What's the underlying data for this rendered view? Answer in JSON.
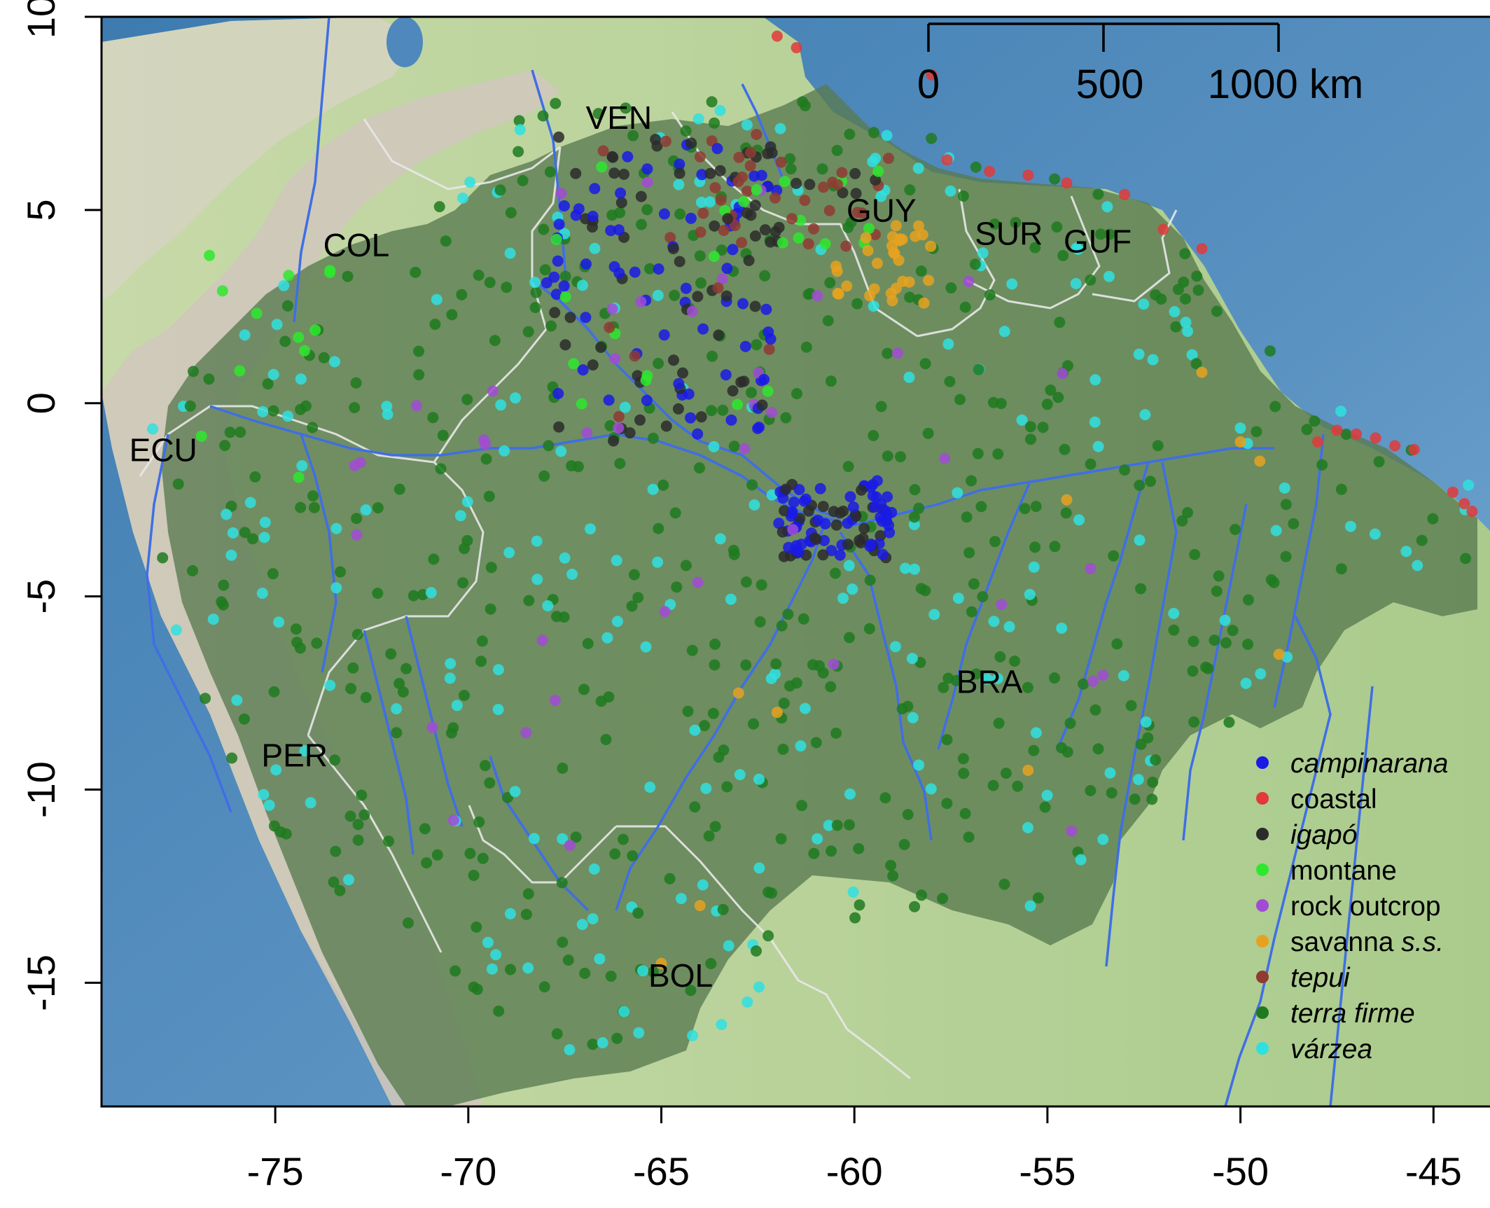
{
  "colors": {
    "ocean_deep": "#3f7fb4",
    "ocean_shallow": "#9dc3de",
    "land_low": "#b6d29a",
    "andes": "#c9c2b5",
    "amazon_region": "#5a7a54",
    "river": "#3b6fe0",
    "border": "#e6e6e6",
    "frame": "#000000"
  },
  "x_axis": {
    "ticks": [
      {
        "value": -75,
        "label": "-75"
      },
      {
        "value": -70,
        "label": "-70"
      },
      {
        "value": -65,
        "label": "-65"
      },
      {
        "value": -60,
        "label": "-60"
      },
      {
        "value": -55,
        "label": "-55"
      },
      {
        "value": -50,
        "label": "-50"
      },
      {
        "value": -45,
        "label": "-45"
      }
    ]
  },
  "y_axis": {
    "ticks": [
      {
        "value": 10,
        "label": "10"
      },
      {
        "value": 5,
        "label": "5"
      },
      {
        "value": 0,
        "label": "0"
      },
      {
        "value": -5,
        "label": "-5"
      },
      {
        "value": -10,
        "label": "-10"
      },
      {
        "value": -15,
        "label": "-15"
      }
    ]
  },
  "extent": {
    "lon": [
      -79.5,
      -43.5
    ],
    "lat": [
      -18.2,
      10.0
    ]
  },
  "countries": [
    {
      "code": "VEN",
      "lon": -66.1,
      "lat": 7.1
    },
    {
      "code": "COL",
      "lon": -72.9,
      "lat": 3.8
    },
    {
      "code": "GUY",
      "lon": -59.3,
      "lat": 4.7
    },
    {
      "code": "SUR",
      "lon": -56.0,
      "lat": 4.1
    },
    {
      "code": "GUF",
      "lon": -53.7,
      "lat": 3.9
    },
    {
      "code": "ECU",
      "lon": -77.9,
      "lat": -1.5
    },
    {
      "code": "BRA",
      "lon": -56.5,
      "lat": -7.5
    },
    {
      "code": "PER",
      "lon": -74.5,
      "lat": -9.4
    },
    {
      "code": "BOL",
      "lon": -64.5,
      "lat": -15.1
    }
  ],
  "scale_bar": {
    "labels": [
      "0",
      "500",
      "1000 km"
    ]
  },
  "legend": {
    "entries": [
      {
        "label": "campinarana",
        "color": "#1a1ae6",
        "italic": true
      },
      {
        "label": "coastal",
        "color": "#e03a3a",
        "italic": false
      },
      {
        "label": "igapó",
        "color": "#2b2b2b",
        "italic": true
      },
      {
        "label": "montane",
        "color": "#2ee82e",
        "italic": false
      },
      {
        "label": "rock outcrop",
        "color": "#a24bd6",
        "italic": false
      },
      {
        "label": "savanna ",
        "label_suffix": "s.s.",
        "color": "#e6a21f",
        "italic": false
      },
      {
        "label": "tepui",
        "color": "#8f3b32",
        "italic": true
      },
      {
        "label": "terra firme",
        "color": "#1f7a1f",
        "italic": true
      },
      {
        "label": "várzea",
        "color": "#2fe0e0",
        "italic": true
      }
    ]
  }
}
